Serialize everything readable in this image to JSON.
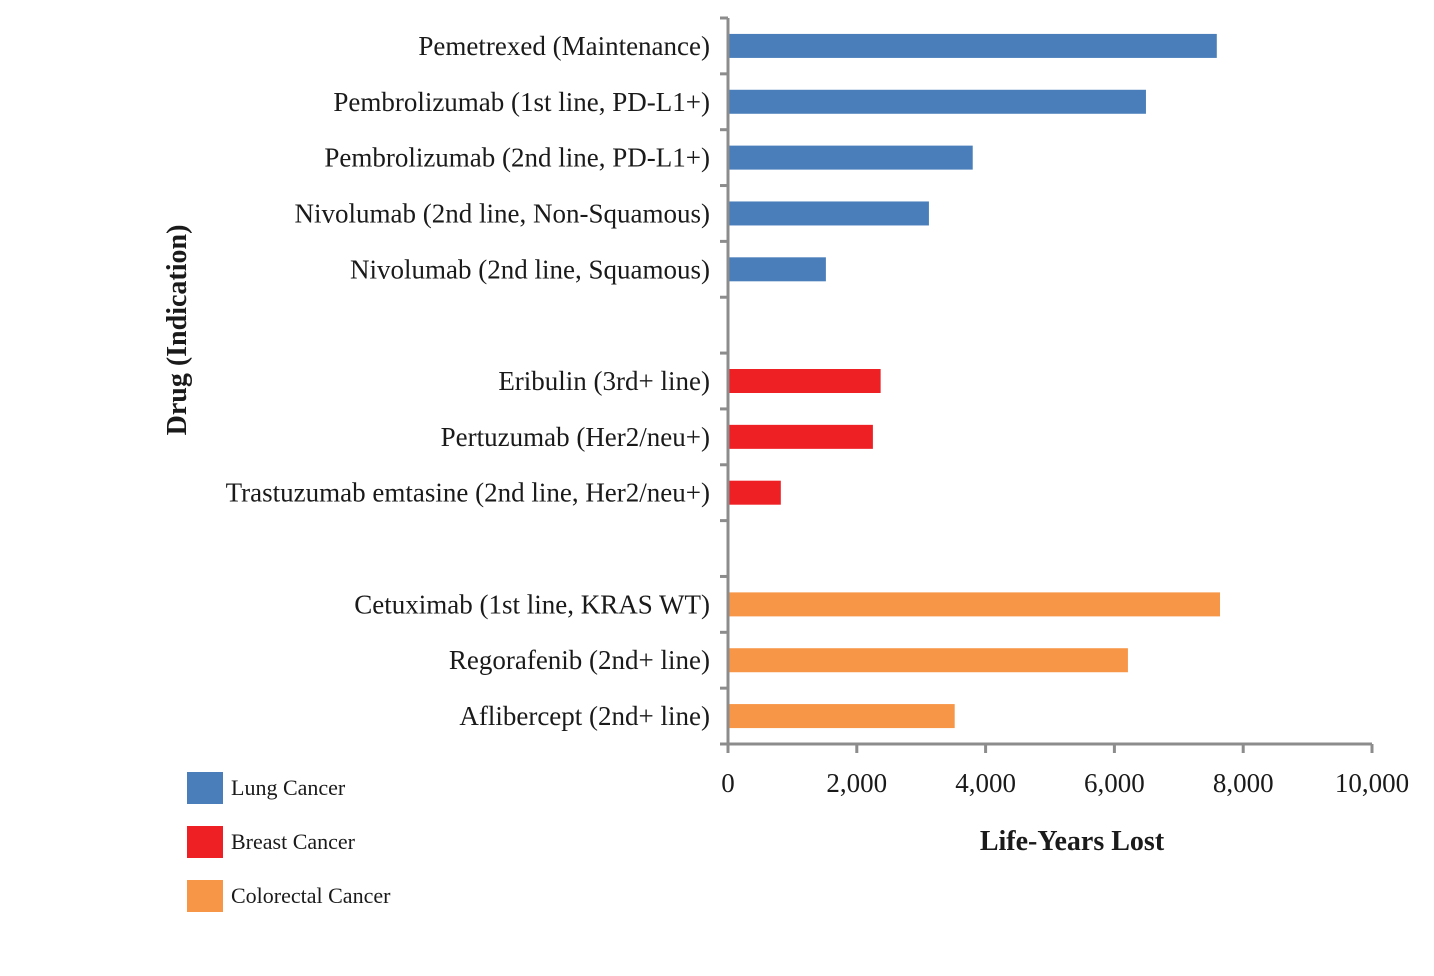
{
  "chart_data": {
    "type": "bar",
    "orientation": "horizontal",
    "title": "",
    "xlabel": "Life-Years Lost",
    "ylabel": "Drug (Indication)",
    "xlim": [
      0,
      10000
    ],
    "xticks": [
      0,
      2000,
      4000,
      6000,
      8000,
      10000
    ],
    "xtick_labels": [
      "0",
      "2,000",
      "4,000",
      "6,000",
      "8,000",
      "10,000"
    ],
    "grid": false,
    "legend_position": "bottom-left",
    "categories": [
      "Pemetrexed (Maintenance)",
      "Pembrolizumab (1st line, PD-L1+)",
      "Pembrolizumab (2nd line, PD-L1+)",
      "Nivolumab (2nd line, Non-Squamous)",
      "Nivolumab (2nd line, Squamous)",
      "",
      "Eribulin (3rd+ line)",
      "Pertuzumab (Her2/neu+)",
      "Trastuzumab emtasine (2nd line, Her2/neu+)",
      "",
      "Cetuximab (1st line, KRAS WT)",
      "Regorafenib (2nd+ line)",
      "Aflibercept (2nd+ line)"
    ],
    "series": [
      {
        "name": "Lung Cancer",
        "color": "#4a7ebb",
        "values": [
          7590,
          6490,
          3800,
          3120,
          1520,
          null,
          null,
          null,
          null,
          null,
          null,
          null,
          null
        ]
      },
      {
        "name": "Breast Cancer",
        "color": "#ee2024",
        "values": [
          null,
          null,
          null,
          null,
          null,
          null,
          2370,
          2250,
          820,
          null,
          null,
          null,
          null
        ]
      },
      {
        "name": "Colorectal Cancer",
        "color": "#f79646",
        "values": [
          null,
          null,
          null,
          null,
          null,
          null,
          null,
          null,
          null,
          null,
          7640,
          6210,
          3520
        ]
      }
    ]
  }
}
